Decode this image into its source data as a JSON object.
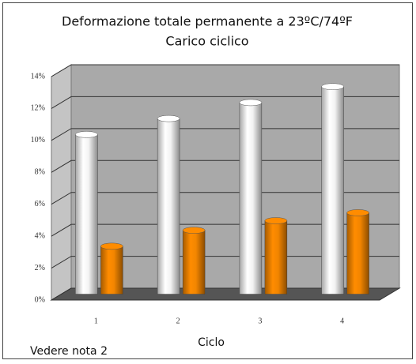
{
  "chart_data": {
    "type": "bar",
    "title": "Deformazione totale permanente a 23ºC/74ºF",
    "subtitle": "Carico ciclico",
    "x_label": "Ciclo",
    "annotation": "Vedere nota 2",
    "categories": [
      "1",
      "2",
      "3",
      "4"
    ],
    "series": [
      {
        "color": "#ffffff",
        "values": [
          10,
          11,
          12,
          13
        ]
      },
      {
        "color": "#ff8c00",
        "values": [
          3,
          4,
          4.6,
          5.1
        ]
      }
    ],
    "ylim": [
      0,
      14
    ],
    "yticks": [
      {
        "value": 0,
        "label": "0%"
      },
      {
        "value": 2,
        "label": "2%"
      },
      {
        "value": 4,
        "label": "4%"
      },
      {
        "value": 6,
        "label": "6%"
      },
      {
        "value": 8,
        "label": "8%"
      },
      {
        "value": 10,
        "label": "10%"
      },
      {
        "value": 12,
        "label": "12%"
      },
      {
        "value": 14,
        "label": "14%"
      }
    ],
    "grid": true
  }
}
